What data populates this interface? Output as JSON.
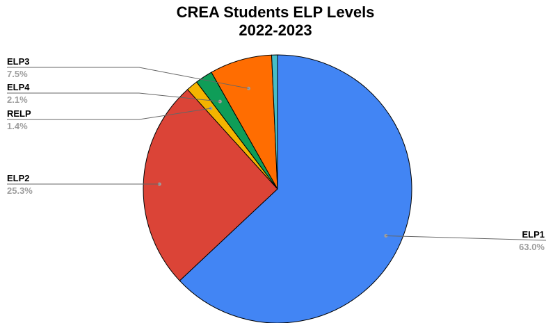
{
  "chart_data": {
    "type": "pie",
    "title": "CREA Students ELP Levels",
    "subtitle": "2022-2023",
    "slices": [
      {
        "label": "ELP1",
        "value": 63.0,
        "display": "63.0%",
        "color": "#4285f4"
      },
      {
        "label": "ELP2",
        "value": 25.3,
        "display": "25.3%",
        "color": "#db4437"
      },
      {
        "label": "RELP",
        "value": 1.4,
        "display": "1.4%",
        "color": "#f4b400"
      },
      {
        "label": "ELP4",
        "value": 2.1,
        "display": "2.1%",
        "color": "#0f9d58"
      },
      {
        "label": "ELP3",
        "value": 7.5,
        "display": "7.5%",
        "color": "#ff6d01"
      },
      {
        "label": "",
        "value": 0.7,
        "display": "",
        "color": "#46bdc6"
      }
    ],
    "start_angle": "top",
    "direction": "clockwise",
    "legend": "labeled leader lines"
  }
}
